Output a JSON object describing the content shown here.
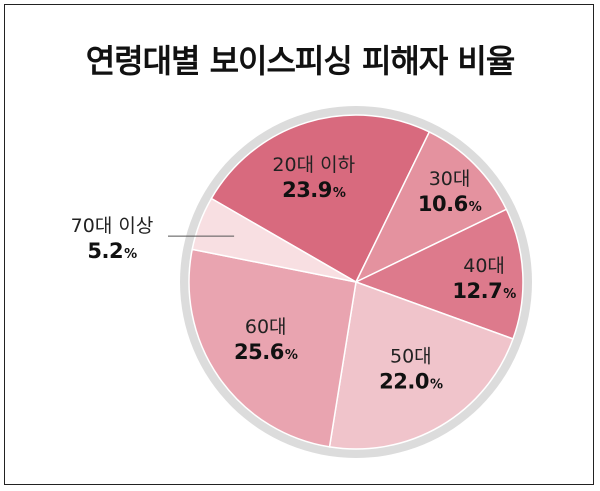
{
  "chart_data": {
    "type": "pie",
    "title": "연령대별 보이스피싱 피해자 비율",
    "slices": [
      {
        "label": "20대 이하",
        "value": 23.9,
        "display": "23.9",
        "color": "#d86a7e"
      },
      {
        "label": "30대",
        "value": 10.6,
        "display": "10.6",
        "color": "#e4929f"
      },
      {
        "label": "40대",
        "value": 12.7,
        "display": "12.7",
        "color": "#dd7a8c"
      },
      {
        "label": "50대",
        "value": 22.0,
        "display": "22.0",
        "color": "#f0c4cb"
      },
      {
        "label": "60대",
        "value": 25.6,
        "display": "25.6",
        "color": "#e9a4b0"
      },
      {
        "label": "70대 이상",
        "value": 5.2,
        "display": "5.2",
        "color": "#f8dfe2"
      }
    ],
    "unit": "%"
  }
}
